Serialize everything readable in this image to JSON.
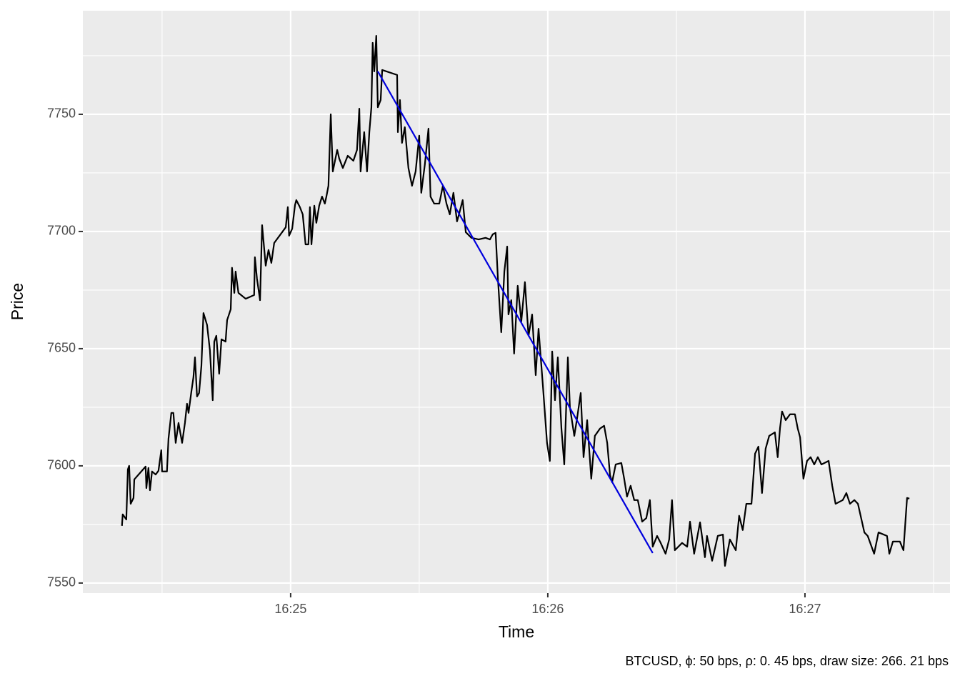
{
  "chart_data": {
    "type": "line",
    "x_label": "Time",
    "y_label": "Price",
    "caption": "BTCUSD, ϕ: 50 bps, ρ: 0. 45 bps, draw size: 266. 21 bps",
    "xlim": [
      984.192,
      987.564
    ],
    "ylim": [
      7545.7,
      7794.2
    ],
    "xticks": [
      {
        "value": 985,
        "label": "16:25"
      },
      {
        "value": 986,
        "label": "16:26"
      },
      {
        "value": 987,
        "label": "16:27"
      }
    ],
    "yticks": [
      7550,
      7600,
      7650,
      7700,
      7750
    ],
    "x_minor_ticks": [
      984.5,
      985.5,
      986.5,
      987.5
    ],
    "y_minor_ticks": [
      7575,
      7625,
      7675,
      7725,
      7775
    ],
    "grid": true,
    "background": "#ebebeb",
    "series": [
      {
        "color": "#000000",
        "x": [
          984.344,
          984.347,
          984.361,
          984.367,
          984.372,
          984.378,
          984.389,
          984.392,
          984.436,
          984.439,
          984.447,
          984.453,
          984.461,
          984.475,
          984.486,
          984.497,
          984.5,
          984.519,
          984.525,
          984.536,
          984.544,
          984.553,
          984.564,
          984.578,
          984.589,
          984.597,
          984.603,
          984.614,
          984.622,
          984.628,
          984.636,
          984.644,
          984.653,
          984.661,
          984.675,
          984.686,
          984.697,
          984.703,
          984.711,
          984.722,
          984.731,
          984.747,
          984.753,
          984.767,
          984.772,
          984.781,
          984.786,
          984.797,
          984.825,
          984.858,
          984.861,
          984.869,
          984.881,
          984.889,
          984.903,
          984.914,
          984.925,
          984.936,
          984.981,
          984.989,
          984.994,
          985.006,
          985.017,
          985.022,
          985.036,
          985.047,
          985.058,
          985.069,
          985.075,
          985.081,
          985.092,
          985.1,
          985.111,
          985.122,
          985.133,
          985.139,
          985.147,
          985.156,
          985.164,
          985.181,
          985.189,
          985.203,
          985.222,
          985.244,
          985.258,
          985.267,
          985.272,
          985.286,
          985.297,
          985.306,
          985.314,
          985.319,
          985.325,
          985.333,
          985.339,
          985.35,
          985.356,
          985.414,
          985.417,
          985.425,
          985.433,
          985.444,
          985.458,
          985.472,
          985.486,
          985.5,
          985.508,
          985.522,
          985.536,
          985.544,
          985.558,
          985.578,
          985.592,
          985.606,
          985.619,
          985.633,
          985.647,
          985.656,
          985.669,
          985.681,
          985.703,
          985.731,
          985.758,
          985.775,
          985.786,
          985.797,
          985.806,
          985.819,
          985.831,
          985.842,
          985.847,
          985.858,
          985.869,
          985.883,
          985.897,
          985.911,
          985.925,
          985.939,
          985.953,
          985.964,
          985.981,
          985.997,
          986.008,
          986.017,
          986.028,
          986.039,
          986.053,
          986.064,
          986.078,
          986.086,
          986.103,
          986.114,
          986.128,
          986.139,
          986.153,
          986.169,
          986.183,
          986.203,
          986.219,
          986.231,
          986.242,
          986.25,
          986.264,
          986.286,
          986.297,
          986.308,
          986.322,
          986.336,
          986.35,
          986.367,
          986.383,
          986.397,
          986.408,
          986.425,
          986.439,
          986.458,
          986.472,
          986.483,
          986.494,
          986.522,
          986.542,
          986.553,
          986.569,
          986.592,
          986.611,
          986.619,
          986.639,
          986.661,
          986.681,
          986.689,
          986.708,
          986.731,
          986.744,
          986.758,
          986.772,
          986.792,
          986.806,
          986.819,
          986.833,
          986.847,
          986.861,
          986.883,
          986.894,
          986.903,
          986.911,
          986.925,
          986.942,
          986.961,
          986.972,
          986.981,
          986.994,
          987.008,
          987.022,
          987.036,
          987.05,
          987.064,
          987.092,
          987.106,
          987.119,
          987.147,
          987.161,
          987.175,
          987.192,
          987.206,
          987.231,
          987.244,
          987.269,
          987.286,
          987.319,
          987.328,
          987.342,
          987.369,
          987.383,
          987.397,
          987.406
        ],
        "values": [
          7574.4,
          7579.3,
          7577.1,
          7598.5,
          7600.0,
          7583.8,
          7586.3,
          7594.2,
          7599.7,
          7590.5,
          7599.1,
          7589.6,
          7597.6,
          7596.3,
          7597.9,
          7606.7,
          7597.6,
          7597.6,
          7611.6,
          7622.6,
          7622.6,
          7609.8,
          7618.3,
          7609.8,
          7618.3,
          7626.5,
          7622.6,
          7631.7,
          7637.8,
          7646.3,
          7629.6,
          7631.1,
          7642.7,
          7665.2,
          7660.1,
          7649.4,
          7628.0,
          7653.0,
          7655.5,
          7639.3,
          7654.0,
          7653.0,
          7662.2,
          7666.8,
          7684.5,
          7673.8,
          7682.9,
          7673.8,
          7671.3,
          7672.9,
          7689.0,
          7679.9,
          7670.7,
          7702.7,
          7685.4,
          7692.1,
          7686.6,
          7695.1,
          7701.8,
          7710.4,
          7698.2,
          7701.2,
          7711.3,
          7713.4,
          7710.4,
          7707.3,
          7694.5,
          7694.5,
          7710.4,
          7694.5,
          7711.0,
          7703.7,
          7711.0,
          7714.9,
          7711.9,
          7714.9,
          7719.5,
          7750.0,
          7725.6,
          7734.8,
          7731.1,
          7727.1,
          7732.3,
          7730.2,
          7734.8,
          7752.4,
          7725.6,
          7742.4,
          7725.6,
          7742.4,
          7753.0,
          7780.5,
          7768.3,
          7783.5,
          7753.0,
          7756.1,
          7768.9,
          7766.8,
          7742.4,
          7756.1,
          7737.8,
          7744.5,
          7727.1,
          7719.5,
          7725.6,
          7740.9,
          7716.5,
          7728.7,
          7743.9,
          7714.9,
          7711.9,
          7711.9,
          7719.5,
          7711.9,
          7707.3,
          7716.5,
          7704.3,
          7707.9,
          7713.4,
          7699.7,
          7697.3,
          7696.6,
          7697.3,
          7696.6,
          7698.8,
          7699.4,
          7679.9,
          7657.0,
          7682.9,
          7693.6,
          7664.6,
          7670.7,
          7647.9,
          7676.8,
          7661.6,
          7678.4,
          7655.5,
          7664.6,
          7638.7,
          7658.5,
          7634.1,
          7609.8,
          7602.1,
          7648.8,
          7628.0,
          7646.3,
          7615.9,
          7600.6,
          7646.3,
          7625.0,
          7612.8,
          7620.4,
          7631.1,
          7603.7,
          7619.5,
          7594.5,
          7612.8,
          7615.9,
          7617.1,
          7609.8,
          7596.0,
          7593.0,
          7600.6,
          7601.2,
          7594.5,
          7586.9,
          7591.5,
          7585.4,
          7585.4,
          7576.2,
          7577.7,
          7585.4,
          7565.5,
          7570.1,
          7567.1,
          7562.5,
          7568.6,
          7585.4,
          7564.0,
          7567.1,
          7565.5,
          7576.2,
          7562.5,
          7575.9,
          7561.0,
          7570.1,
          7559.5,
          7570.1,
          7570.7,
          7557.3,
          7568.6,
          7564.0,
          7578.7,
          7572.6,
          7583.8,
          7583.8,
          7605.2,
          7608.2,
          7588.4,
          7607.3,
          7612.8,
          7614.3,
          7603.7,
          7616.1,
          7623.2,
          7619.5,
          7622.0,
          7622.0,
          7615.9,
          7612.2,
          7594.5,
          7602.1,
          7603.7,
          7600.6,
          7603.7,
          7600.6,
          7602.1,
          7591.5,
          7583.8,
          7585.4,
          7588.4,
          7583.8,
          7585.4,
          7583.8,
          7571.6,
          7570.1,
          7562.5,
          7571.6,
          7570.1,
          7562.5,
          7567.7,
          7567.7,
          7564.0,
          7586.3,
          7586.0
        ]
      },
      {
        "color": "#0000dd",
        "x": [
          985.339,
          986.408
        ],
        "values": [
          7768.3,
          7562.8
        ]
      }
    ]
  }
}
